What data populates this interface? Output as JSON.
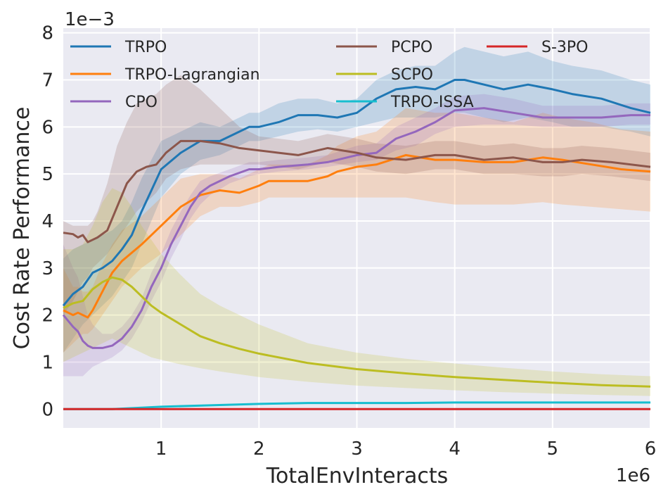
{
  "chart_data": {
    "type": "line",
    "xlabel": "TotalEnvInteracts",
    "ylabel": "Cost Rate Performance",
    "x_offset_label": "1e6",
    "y_offset_label": "1e−3",
    "xlim": [
      0.0,
      6.0
    ],
    "ylim": [
      -0.4,
      8.1
    ],
    "xticks": [
      1,
      2,
      3,
      4,
      5,
      6
    ],
    "xtick_labels": [
      "1",
      "2",
      "3",
      "4",
      "5",
      "6"
    ],
    "yticks": [
      0,
      1,
      2,
      3,
      4,
      5,
      6,
      7,
      8
    ],
    "ytick_labels": [
      "0",
      "1",
      "2",
      "3",
      4,
      "5",
      "6",
      "7",
      "8"
    ],
    "legend_position": "top",
    "grid": true,
    "background": "#eaeaf2",
    "series": [
      {
        "name": "TRPO",
        "color": "#1f77b4",
        "x": [
          0,
          0.1,
          0.2,
          0.3,
          0.4,
          0.5,
          0.6,
          0.7,
          0.8,
          0.9,
          1.0,
          1.2,
          1.4,
          1.6,
          1.8,
          1.9,
          2.0,
          2.2,
          2.4,
          2.6,
          2.8,
          3.0,
          3.2,
          3.4,
          3.6,
          3.8,
          4.0,
          4.1,
          4.3,
          4.5,
          4.75,
          5.0,
          5.2,
          5.5,
          5.8,
          6.0
        ],
        "values": [
          2.2,
          2.45,
          2.6,
          2.9,
          3.0,
          3.15,
          3.4,
          3.7,
          4.2,
          4.65,
          5.1,
          5.45,
          5.7,
          5.7,
          5.9,
          6.0,
          6.0,
          6.1,
          6.25,
          6.25,
          6.2,
          6.3,
          6.6,
          6.8,
          6.85,
          6.8,
          7.0,
          7.0,
          6.9,
          6.8,
          6.9,
          6.8,
          6.7,
          6.6,
          6.4,
          6.3
        ],
        "lower": [
          1.2,
          1.5,
          1.8,
          2.0,
          2.2,
          2.4,
          2.7,
          3.0,
          3.5,
          4.0,
          4.5,
          5.0,
          5.3,
          5.4,
          5.6,
          5.7,
          5.7,
          5.8,
          5.9,
          5.95,
          5.9,
          6.0,
          6.1,
          6.2,
          6.2,
          6.2,
          6.3,
          6.3,
          6.2,
          6.1,
          6.2,
          6.1,
          6.0,
          6.0,
          5.9,
          5.8
        ],
        "upper": [
          3.2,
          3.4,
          3.5,
          3.6,
          3.7,
          3.8,
          4.0,
          4.4,
          4.9,
          5.3,
          5.7,
          5.9,
          6.1,
          6.0,
          6.2,
          6.3,
          6.3,
          6.5,
          6.6,
          6.6,
          6.5,
          6.6,
          7.0,
          7.2,
          7.3,
          7.3,
          7.6,
          7.7,
          7.6,
          7.5,
          7.6,
          7.4,
          7.3,
          7.2,
          7.0,
          6.9
        ]
      },
      {
        "name": "TRPO-Lagrangian",
        "color": "#ff7f0e",
        "x": [
          0,
          0.1,
          0.15,
          0.2,
          0.25,
          0.3,
          0.4,
          0.5,
          0.6,
          0.8,
          1.0,
          1.2,
          1.4,
          1.6,
          1.8,
          2.0,
          2.1,
          2.3,
          2.5,
          2.7,
          2.8,
          3.0,
          3.2,
          3.5,
          3.8,
          4.0,
          4.3,
          4.6,
          4.9,
          5.1,
          5.4,
          5.7,
          6.0
        ],
        "values": [
          2.1,
          2.0,
          2.05,
          2.0,
          1.95,
          2.1,
          2.5,
          2.9,
          3.15,
          3.5,
          3.9,
          4.3,
          4.55,
          4.65,
          4.6,
          4.75,
          4.85,
          4.85,
          4.85,
          4.95,
          5.05,
          5.15,
          5.2,
          5.4,
          5.3,
          5.3,
          5.25,
          5.25,
          5.35,
          5.3,
          5.2,
          5.1,
          5.05
        ],
        "lower": [
          1.2,
          1.4,
          1.5,
          1.6,
          1.6,
          1.7,
          2.0,
          2.3,
          2.6,
          3.0,
          3.3,
          3.7,
          4.1,
          4.3,
          4.3,
          4.4,
          4.5,
          4.5,
          4.5,
          4.5,
          4.5,
          4.5,
          4.5,
          4.5,
          4.4,
          4.35,
          4.35,
          4.35,
          4.4,
          4.35,
          4.3,
          4.25,
          4.2
        ],
        "upper": [
          3.0,
          2.6,
          2.6,
          2.5,
          2.5,
          2.6,
          3.1,
          3.5,
          3.8,
          4.1,
          4.5,
          4.9,
          5.0,
          5.0,
          4.9,
          5.1,
          5.2,
          5.2,
          5.2,
          5.4,
          5.6,
          5.8,
          5.9,
          6.4,
          6.3,
          6.3,
          6.2,
          6.1,
          6.3,
          6.2,
          6.1,
          5.95,
          5.9
        ]
      },
      {
        "name": "CPO",
        "color": "#9467bd",
        "x": [
          0,
          0.1,
          0.15,
          0.2,
          0.25,
          0.3,
          0.4,
          0.5,
          0.6,
          0.7,
          0.8,
          0.9,
          1.0,
          1.1,
          1.2,
          1.3,
          1.4,
          1.5,
          1.7,
          1.9,
          2.0,
          2.2,
          2.5,
          2.7,
          3.0,
          3.2,
          3.4,
          3.6,
          3.8,
          4.0,
          4.3,
          4.6,
          4.9,
          5.2,
          5.5,
          5.8,
          6.0
        ],
        "values": [
          2.0,
          1.75,
          1.65,
          1.45,
          1.35,
          1.3,
          1.3,
          1.35,
          1.5,
          1.75,
          2.1,
          2.6,
          3.0,
          3.5,
          3.9,
          4.3,
          4.6,
          4.75,
          4.95,
          5.1,
          5.1,
          5.15,
          5.2,
          5.25,
          5.4,
          5.45,
          5.75,
          5.9,
          6.1,
          6.35,
          6.4,
          6.3,
          6.2,
          6.2,
          6.2,
          6.25,
          6.25
        ],
        "lower": [
          0.7,
          0.7,
          0.7,
          0.7,
          0.8,
          0.9,
          1.0,
          1.1,
          1.25,
          1.5,
          1.85,
          2.3,
          2.7,
          3.2,
          3.6,
          4.05,
          4.35,
          4.55,
          4.8,
          4.95,
          5.0,
          5.05,
          5.1,
          5.15,
          5.25,
          5.3,
          5.5,
          5.6,
          5.85,
          6.0,
          6.05,
          6.05,
          6.0,
          6.0,
          6.0,
          6.05,
          6.05
        ],
        "upper": [
          3.5,
          3.0,
          2.8,
          2.4,
          2.0,
          1.8,
          1.6,
          1.6,
          1.75,
          2.0,
          2.35,
          2.9,
          3.3,
          3.8,
          4.2,
          4.55,
          4.85,
          4.95,
          5.1,
          5.25,
          5.25,
          5.3,
          5.35,
          5.4,
          5.6,
          5.65,
          6.0,
          6.2,
          6.4,
          6.65,
          6.7,
          6.6,
          6.45,
          6.45,
          6.45,
          6.5,
          6.5
        ]
      },
      {
        "name": "PCPO",
        "color": "#8c564b",
        "x": [
          0,
          0.1,
          0.15,
          0.2,
          0.25,
          0.3,
          0.35,
          0.45,
          0.55,
          0.65,
          0.75,
          0.85,
          0.95,
          1.05,
          1.2,
          1.4,
          1.6,
          1.8,
          2.0,
          2.2,
          2.4,
          2.6,
          2.7,
          3.0,
          3.2,
          3.5,
          3.8,
          4.0,
          4.3,
          4.6,
          4.9,
          5.1,
          5.3,
          5.6,
          6.0
        ],
        "values": [
          3.75,
          3.72,
          3.65,
          3.7,
          3.55,
          3.6,
          3.65,
          3.8,
          4.3,
          4.8,
          5.05,
          5.15,
          5.2,
          5.45,
          5.7,
          5.7,
          5.65,
          5.55,
          5.5,
          5.45,
          5.4,
          5.5,
          5.55,
          5.45,
          5.35,
          5.3,
          5.4,
          5.4,
          5.3,
          5.35,
          5.25,
          5.25,
          5.3,
          5.25,
          5.15
        ],
        "lower": [
          2.0,
          2.3,
          2.5,
          2.7,
          2.8,
          3.0,
          3.1,
          3.3,
          3.6,
          3.9,
          4.2,
          4.4,
          4.6,
          4.9,
          5.1,
          5.2,
          5.2,
          5.2,
          5.2,
          5.15,
          5.1,
          5.2,
          5.25,
          5.15,
          5.05,
          5.0,
          5.1,
          5.1,
          5.0,
          5.0,
          4.95,
          4.95,
          5.0,
          4.95,
          4.85
        ],
        "upper": [
          4.0,
          3.9,
          3.9,
          3.9,
          3.9,
          4.0,
          4.2,
          4.8,
          5.6,
          6.1,
          6.5,
          6.6,
          6.7,
          6.9,
          7.1,
          6.8,
          6.4,
          6.0,
          5.8,
          5.75,
          5.7,
          5.8,
          5.85,
          5.75,
          5.65,
          5.6,
          5.7,
          5.7,
          5.6,
          5.65,
          5.55,
          5.55,
          5.6,
          5.55,
          5.45
        ]
      },
      {
        "name": "SCPO",
        "color": "#bcbd22",
        "x": [
          0,
          0.1,
          0.2,
          0.3,
          0.4,
          0.5,
          0.6,
          0.7,
          0.8,
          0.9,
          1.0,
          1.2,
          1.4,
          1.6,
          1.8,
          2.0,
          2.5,
          3.0,
          3.5,
          4.0,
          4.5,
          5.0,
          5.5,
          6.0
        ],
        "values": [
          2.15,
          2.25,
          2.3,
          2.55,
          2.7,
          2.8,
          2.75,
          2.6,
          2.4,
          2.2,
          2.05,
          1.8,
          1.55,
          1.4,
          1.28,
          1.18,
          0.98,
          0.85,
          0.76,
          0.68,
          0.62,
          0.56,
          0.51,
          0.48
        ],
        "lower": [
          1.0,
          1.1,
          1.2,
          1.3,
          1.4,
          1.5,
          1.4,
          1.3,
          1.2,
          1.1,
          1.05,
          0.95,
          0.87,
          0.8,
          0.74,
          0.68,
          0.58,
          0.5,
          0.45,
          0.4,
          0.36,
          0.33,
          0.3,
          0.28
        ],
        "upper": [
          3.4,
          3.4,
          3.5,
          3.9,
          4.4,
          4.7,
          4.6,
          4.3,
          3.9,
          3.6,
          3.3,
          2.85,
          2.45,
          2.2,
          2.0,
          1.8,
          1.4,
          1.2,
          1.07,
          0.97,
          0.88,
          0.8,
          0.74,
          0.7
        ]
      },
      {
        "name": "TRPO-ISSA",
        "color": "#17becf",
        "x": [
          0,
          0.5,
          0.8,
          1.0,
          1.5,
          2.0,
          2.5,
          3.0,
          3.5,
          4.0,
          5.0,
          6.0
        ],
        "values": [
          0.0,
          0.0,
          0.03,
          0.05,
          0.08,
          0.11,
          0.13,
          0.13,
          0.13,
          0.14,
          0.14,
          0.14
        ],
        "lower": [
          0.0,
          0.0,
          0.02,
          0.03,
          0.06,
          0.09,
          0.11,
          0.11,
          0.11,
          0.12,
          0.12,
          0.12
        ],
        "upper": [
          0.0,
          0.0,
          0.04,
          0.07,
          0.1,
          0.13,
          0.15,
          0.15,
          0.15,
          0.16,
          0.16,
          0.16
        ]
      },
      {
        "name": "S-3PO",
        "color": "#d62728",
        "x": [
          0,
          6.0
        ],
        "values": [
          0.0,
          0.0
        ],
        "lower": [
          0.0,
          0.0
        ],
        "upper": [
          0.0,
          0.0
        ]
      }
    ]
  }
}
